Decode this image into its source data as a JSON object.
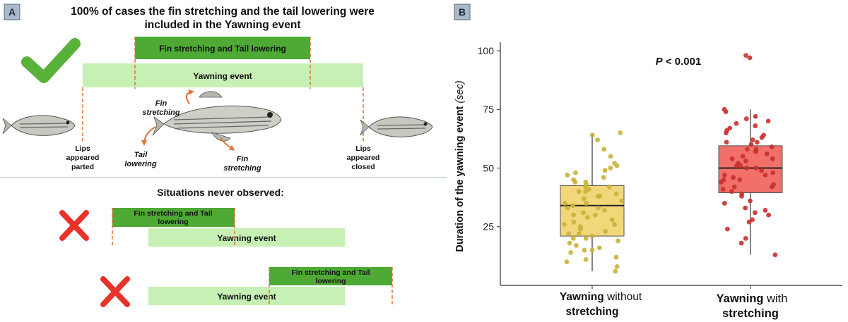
{
  "panel_a": {
    "badge": "A",
    "title_line1": "100% of cases the fin stretching and the tail lowering were",
    "title_line2": "included in the Yawning event",
    "bar_fin_tail": "Fin stretching and Tail lowering",
    "bar_yawning": "Yawning event",
    "label_fin_stretching_top_1": "Fin",
    "label_fin_stretching_top_2": "stretching",
    "label_tail_lowering_1": "Tail",
    "label_tail_lowering_2": "lowering",
    "label_fin_stretching_bottom_1": "Fin",
    "label_fin_stretching_bottom_2": "stretching",
    "lips_parted_1": "Lips",
    "lips_parted_2": "appeared",
    "lips_parted_3": "parted",
    "lips_closed_1": "Lips",
    "lips_closed_2": "appeared",
    "lips_closed_3": "closed",
    "never_observed_title": "Situations never observed:",
    "case1_fin_tail_1": "Fin stretching and Tail",
    "case1_fin_tail_2": "lowering",
    "case1_yawning": "Yawning event",
    "case2_fin_tail_1": "Fin stretching and Tail",
    "case2_fin_tail_2": "lowering",
    "case2_yawning": "Yawning event"
  },
  "colors": {
    "dark_green": "#4ea935",
    "light_green": "#c6f0b4",
    "orange_dashed": "#e0743a",
    "check_green": "#58b23a",
    "cross_red": "#e8322a",
    "badge_fill": "#a9b9c9",
    "yellow_box": "#f2d77a",
    "yellow_point": "#c9b23a",
    "red_box": "#f2706a",
    "red_point": "#c7312f"
  },
  "panel_b": {
    "badge": "B"
  },
  "chart_data": {
    "type": "box",
    "ylabel_main": "Duration of the yawning event ",
    "ylabel_unit": "(sec)",
    "ylim": [
      0,
      103
    ],
    "yticks": [
      "25",
      "50",
      "75",
      "100"
    ],
    "annotation_p": "P",
    "annotation_rest": " < 0.001",
    "groups": [
      {
        "label_bold_1": "Yawning",
        "label_plain_1": " without",
        "label_bold_2": "stretching",
        "label_plain_2": "",
        "q1": 21,
        "median": 34,
        "q3": 42.5,
        "whisker_low": 6,
        "whisker_high": 65,
        "points": [
          6,
          8,
          10,
          11,
          12,
          14,
          15,
          15,
          16,
          17,
          18,
          19,
          20,
          20,
          21,
          22,
          22,
          23,
          24,
          25,
          26,
          26,
          27,
          28,
          29,
          30,
          30,
          31,
          32,
          33,
          33,
          34,
          35,
          35,
          36,
          37,
          38,
          38,
          39,
          40,
          40,
          41,
          42,
          42,
          43,
          44,
          44,
          45,
          46,
          47,
          48,
          49,
          50,
          51,
          52,
          55,
          58,
          62,
          64,
          65
        ]
      },
      {
        "label_bold_1": "Yawning",
        "label_plain_1": " with",
        "label_bold_2": "stretching",
        "label_plain_2": "",
        "q1": 39.5,
        "median": 50,
        "q3": 59.5,
        "whisker_low": 13,
        "whisker_high": 75,
        "points": [
          13,
          18,
          20,
          24,
          27,
          28,
          30,
          31,
          32,
          33,
          35,
          36,
          38,
          39,
          40,
          41,
          42,
          42,
          43,
          44,
          45,
          45,
          46,
          47,
          47,
          48,
          49,
          50,
          50,
          51,
          51,
          52,
          53,
          54,
          54,
          55,
          56,
          57,
          58,
          58,
          59,
          60,
          61,
          61,
          62,
          63,
          64,
          65,
          66,
          67,
          68,
          69,
          70,
          71,
          72,
          74,
          75,
          97,
          98
        ]
      }
    ]
  }
}
